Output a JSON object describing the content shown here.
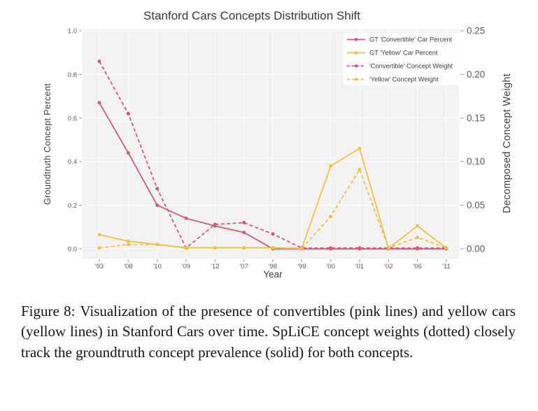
{
  "chart_data": {
    "type": "line",
    "title": "Stanford Cars Concepts Distribution Shift",
    "xlabel": "Year",
    "ylabel_left": "Groundtruth Concept Percent",
    "ylabel_right": "Decomposed Concept Weight",
    "categories": [
      "'93",
      "'08",
      "'10",
      "'09",
      "'12",
      "'07",
      "'98",
      "'99",
      "'00",
      "'01",
      "'02",
      "'06",
      "'11"
    ],
    "left_axis": {
      "range": [
        0,
        1.0
      ],
      "ticks": [
        0,
        0.2,
        0.4,
        0.6,
        0.8,
        1.0
      ],
      "tick_labels": [
        "0.0",
        "0.2",
        "0.4",
        "0.6",
        "0.8",
        "1.0"
      ]
    },
    "right_axis": {
      "range": [
        0,
        0.25
      ],
      "ticks": [
        0,
        0.05,
        0.1,
        0.15,
        0.2,
        0.25
      ],
      "tick_labels": [
        "0.00",
        "0.05",
        "0.10",
        "0.15",
        "0.20",
        "0.25"
      ]
    },
    "grid": true,
    "legend_position": "upper-right",
    "series": [
      {
        "name": "GT 'Convertible' Car Percent",
        "axis": "left",
        "line_style": "solid",
        "marker": "circle",
        "color": "#d35a74",
        "values": [
          0.67,
          0.44,
          0.2,
          0.14,
          0.105,
          0.075,
          0,
          0,
          0,
          0,
          0,
          0,
          0
        ]
      },
      {
        "name": "GT 'Yellow' Car Percent",
        "axis": "left",
        "line_style": "solid",
        "marker": "circle",
        "color": "#ecc342",
        "values": [
          0.065,
          0.035,
          0.02,
          0.005,
          0.005,
          0.005,
          0.005,
          0.002,
          0.38,
          0.46,
          0.002,
          0.105,
          0.003
        ]
      },
      {
        "name": "'Convertible' Concept Weight",
        "axis": "right",
        "line_style": "dashed",
        "marker": "circle",
        "color": "#d35a74",
        "values": [
          0.215,
          0.155,
          0.069,
          0.001,
          0.028,
          0.03,
          0.017,
          0.001,
          0.001,
          0.001,
          0.001,
          0.001,
          0.001
        ]
      },
      {
        "name": "'Yellow' Concept Weight",
        "axis": "right",
        "line_style": "dashed",
        "marker": "circle",
        "color": "#ecc342",
        "values": [
          0.001,
          0.005,
          0.005,
          0.001,
          0.001,
          0.001,
          0.001,
          0.0005,
          0.037,
          0.091,
          0.001,
          0.013,
          0.001
        ]
      }
    ]
  },
  "caption": {
    "label": "Figure 8:",
    "text": "Visualization of the presence of convertibles (pink lines) and yellow cars (yellow lines) in Stanford Cars over time. SpLiCE concept weights (dotted) closely track the groundtruth concept prevalence (solid) for both concepts."
  },
  "colors": {
    "plot_bg": "#f2f2f2",
    "grid": "#ffffff",
    "tick_mark": "#9a9a9a",
    "tick_text": "#5c5c5c",
    "title_text": "#383838",
    "axis_label_text": "#3f3f3f",
    "legend_bg": "#ffffff",
    "legend_text": "#3f3f3f",
    "caption_text": "#151515"
  }
}
